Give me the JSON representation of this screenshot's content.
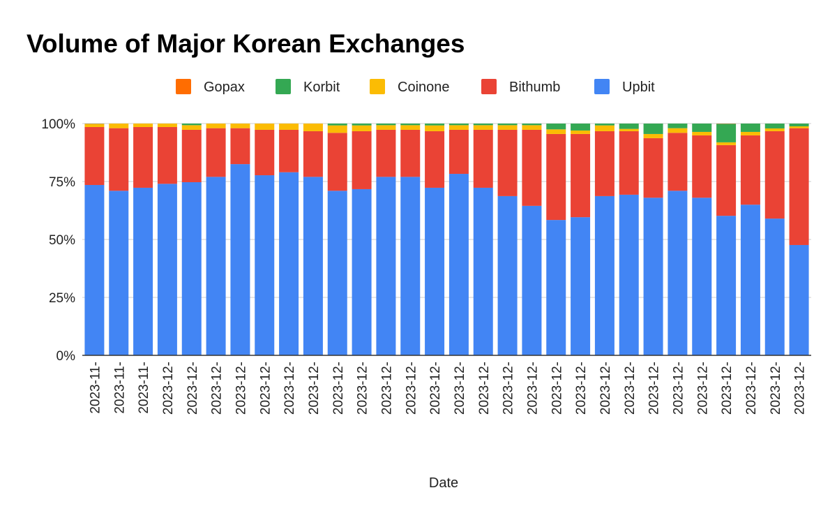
{
  "chart_data": {
    "type": "stacked_bar",
    "title": "Volume of Major Korean Exchanges",
    "x_label": "Date",
    "categories": [
      "2023-11-",
      "2023-11-",
      "2023-11-",
      "2023-12-",
      "2023-12-",
      "2023-12-",
      "2023-12-",
      "2023-12-",
      "2023-12-",
      "2023-12-",
      "2023-12-",
      "2023-12-",
      "2023-12-",
      "2023-12-",
      "2023-12-",
      "2023-12-",
      "2023-12-",
      "2023-12-",
      "2023-12-",
      "2023-12-",
      "2023-12-",
      "2023-12-",
      "2023-12-",
      "2023-12-",
      "2023-12-",
      "2023-12-",
      "2023-12-",
      "2023-12-",
      "2023-12-",
      "2023-12-"
    ],
    "series": [
      {
        "name": "Gopax",
        "color": "#ff6d01",
        "values": [
          0.1,
          0,
          0,
          0,
          0,
          0,
          0,
          0,
          0,
          0,
          0,
          0,
          0,
          0,
          0,
          0,
          0,
          0,
          0,
          0,
          0,
          0,
          0,
          0,
          0,
          0,
          0.1,
          0,
          0,
          0
        ]
      },
      {
        "name": "Korbit",
        "color": "#34a853",
        "values": [
          0.1,
          0,
          0,
          0,
          0.7,
          0,
          0,
          0,
          0,
          0,
          0.8,
          0.8,
          0.7,
          0.7,
          0.8,
          0.7,
          0.7,
          0.7,
          0.7,
          2.5,
          3,
          0.8,
          2.3,
          4.5,
          2,
          3.6,
          8,
          3.6,
          2.1,
          1.2
        ]
      },
      {
        "name": "Coinone",
        "color": "#fbbc04",
        "values": [
          1.3,
          2,
          1.5,
          1.5,
          2,
          2,
          2,
          2.7,
          2.7,
          3.3,
          3.2,
          2.5,
          2,
          2,
          2.5,
          2,
          2,
          2,
          2,
          2,
          1.5,
          2.5,
          1,
          1.8,
          2,
          1.5,
          1.2,
          1.5,
          1.2,
          0.8
        ]
      },
      {
        "name": "Bithumb",
        "color": "#ea4335",
        "values": [
          25,
          27,
          26.2,
          24.5,
          22.6,
          21,
          15.5,
          19.6,
          18.3,
          19.7,
          25,
          25,
          20.3,
          20.3,
          24.4,
          19,
          25,
          28.6,
          32.8,
          37.1,
          35.9,
          28,
          27.4,
          25.7,
          25,
          26.9,
          30.5,
          29.9,
          37.7,
          50.4
        ]
      },
      {
        "name": "Upbit",
        "color": "#4285f4",
        "values": [
          73.5,
          71,
          72.3,
          74,
          74.7,
          77,
          82.5,
          77.7,
          79,
          77,
          71,
          71.7,
          77,
          77,
          72.3,
          78.3,
          72.3,
          68.7,
          64.5,
          58.4,
          59.6,
          68.7,
          69.3,
          68,
          71,
          68,
          60.2,
          65,
          59,
          47.6
        ]
      }
    ],
    "ylim": [
      0,
      100
    ],
    "yticks": [
      {
        "value": 0,
        "label": "0%"
      },
      {
        "value": 25,
        "label": "25%"
      },
      {
        "value": 50,
        "label": "50%"
      },
      {
        "value": 75,
        "label": "75%"
      },
      {
        "value": 100,
        "label": "100%"
      }
    ],
    "grid": true
  }
}
